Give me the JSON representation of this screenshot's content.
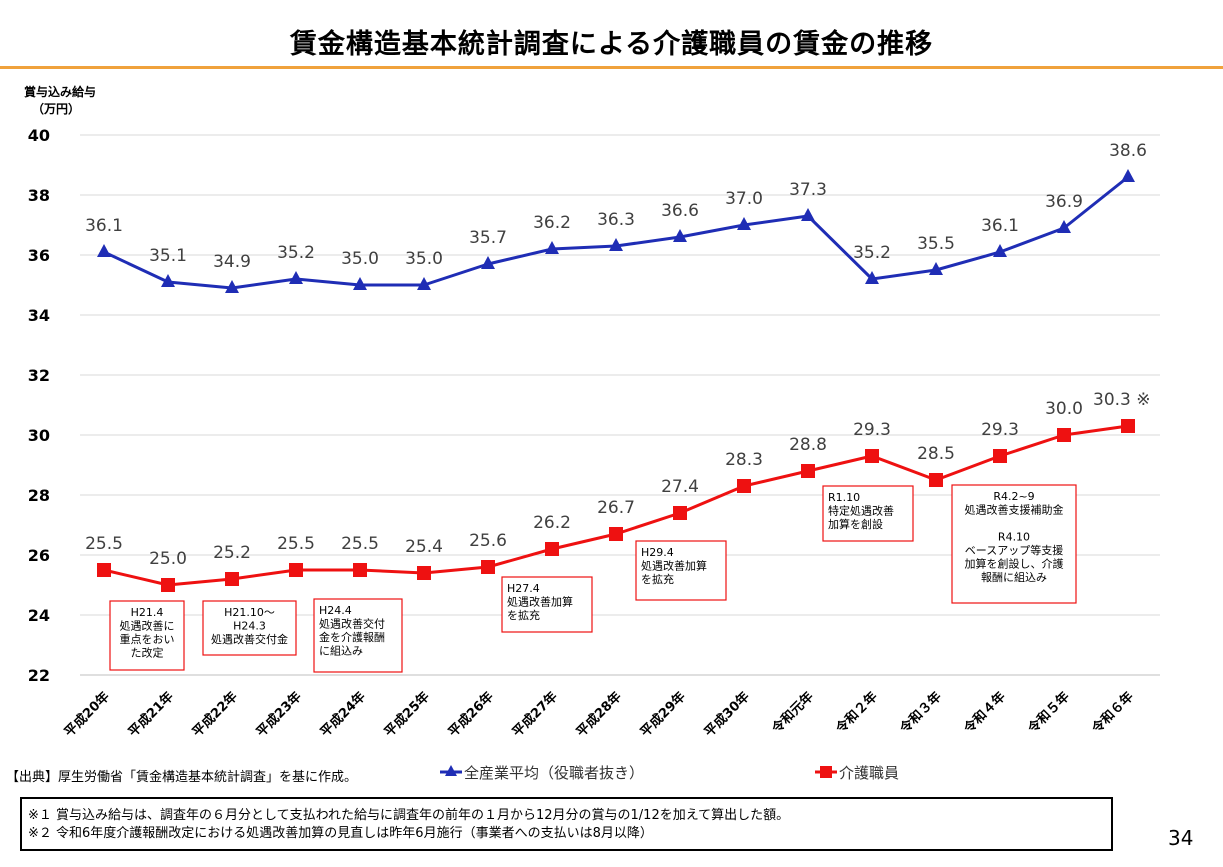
{
  "title": "賃金構造基本統計調査による介護職員の賃金の推移",
  "colors": {
    "accent": "#f0a23c",
    "blue": "#1f2db5",
    "red": "#ee1111",
    "box": "#ee1111",
    "grid": "#d9d9d9"
  },
  "chart_data": {
    "type": "line",
    "ylabel": "賞与込み給与",
    "yunit": "（万円）",
    "ylim": [
      22,
      40
    ],
    "yticks": [
      22,
      24,
      26,
      28,
      30,
      32,
      34,
      36,
      38,
      40
    ],
    "categories": [
      "平成20年",
      "平成21年",
      "平成22年",
      "平成23年",
      "平成24年",
      "平成25年",
      "平成26年",
      "平成27年",
      "平成28年",
      "平成29年",
      "平成30年",
      "令和元年",
      "令和２年",
      "令和３年",
      "令和４年",
      "令和５年",
      "令和６年"
    ],
    "series": [
      {
        "name": "全産業平均（役職者抜き）",
        "marker": "triangle",
        "color": "#1f2db5",
        "values": [
          36.1,
          35.1,
          34.9,
          35.2,
          35.0,
          35.0,
          35.7,
          36.2,
          36.3,
          36.6,
          37.0,
          37.3,
          35.2,
          35.5,
          36.1,
          36.9,
          38.6
        ],
        "labels": [
          "36.1",
          "35.1",
          "34.9",
          "35.2",
          "35.0",
          "35.0",
          "35.7",
          "36.2",
          "36.3",
          "36.6",
          "37.0",
          "37.3",
          "35.2",
          "35.5",
          "36.1",
          "36.9",
          "38.6"
        ]
      },
      {
        "name": "介護職員",
        "marker": "square",
        "color": "#ee1111",
        "values": [
          25.5,
          25.0,
          25.2,
          25.5,
          25.5,
          25.4,
          25.6,
          26.2,
          26.7,
          27.4,
          28.3,
          28.8,
          29.3,
          28.5,
          29.3,
          30.0,
          30.3
        ],
        "labels": [
          "25.5",
          "25.0",
          "25.2",
          "25.5",
          "25.5",
          "25.4",
          "25.6",
          "26.2",
          "26.7",
          "27.4",
          "28.3",
          "28.8",
          "29.3",
          "28.5",
          "29.3",
          "30.0",
          "30.3 ※"
        ]
      }
    ],
    "annotations": [
      {
        "lines": [
          "H21.4",
          "処遇改善に",
          "重点をおい",
          "た改定"
        ]
      },
      {
        "lines": [
          "H21.10～",
          "H24.3",
          "処遇改善交付金"
        ]
      },
      {
        "lines": [
          "H24.4",
          "処遇改善交付",
          "金を介護報酬",
          "に組込み"
        ]
      },
      {
        "lines": [
          "H27.4",
          "処遇改善加算",
          "を拡充"
        ]
      },
      {
        "lines": [
          "H29.4",
          "処遇改善加算",
          "を拡充"
        ]
      },
      {
        "lines": [
          "R1.10",
          "特定処遇改善",
          "加算を創設"
        ]
      },
      {
        "lines": [
          "R4.2~9",
          "処遇改善支援補助金",
          "",
          "R4.10",
          "ベースアップ等支援",
          "加算を創設し、介護",
          "報酬に組込み"
        ]
      }
    ]
  },
  "source": "【出典】厚生労働省「賃金構造基本統計調査」を基に作成。",
  "notes": [
    "※１ 賞与込み給与は、調査年の６月分として支払われた給与に調査年の前年の１月から12月分の賞与の1/12を加えて算出した額。",
    "※２ 令和6年度介護報酬改定における処遇改善加算の見直しは昨年6月施行（事業者への支払いは8月以降）"
  ],
  "page_number": "34"
}
